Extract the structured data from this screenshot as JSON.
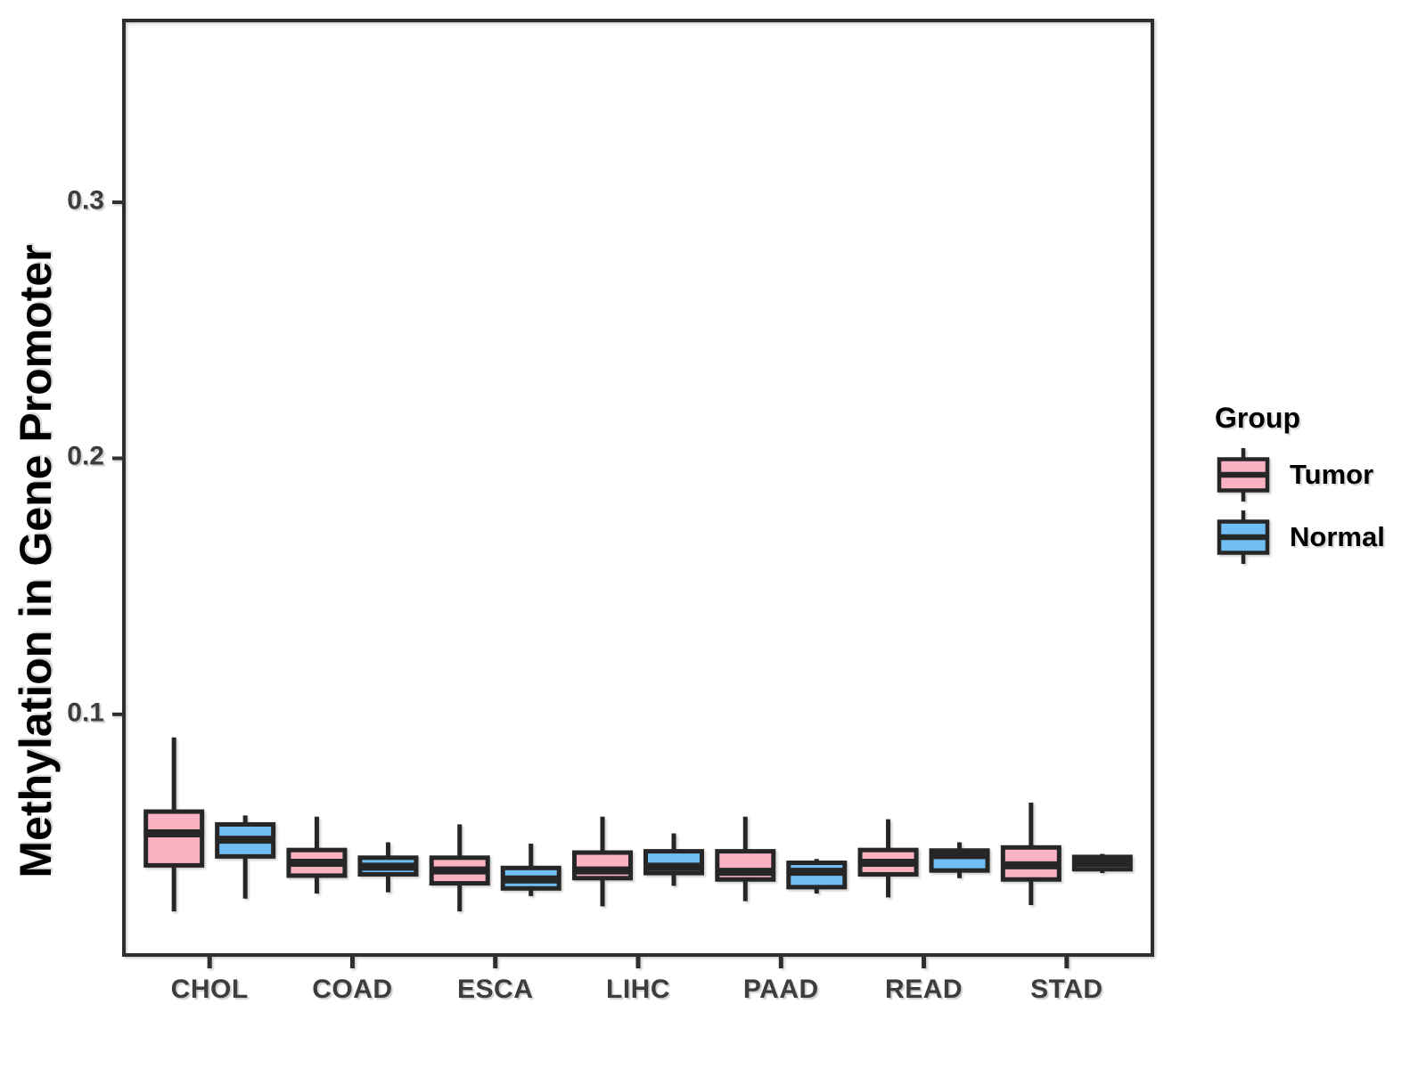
{
  "figure": {
    "background": "#ffffff",
    "legend": {
      "title": "Group",
      "items": [
        {
          "label": "Tumor",
          "color_key": "tumor"
        },
        {
          "label": "Normal",
          "color_key": "normal"
        }
      ]
    }
  },
  "colors": {
    "tumor_fill": "#FAB2C2",
    "normal_fill": "#71BEF5",
    "box_line": "#262626",
    "panel_line": "#2e2e2e",
    "tick_text": "#3d3d3d",
    "title_text": "#000000"
  },
  "chart_data": {
    "type": "boxplot",
    "title": "",
    "xlabel": "",
    "ylabel": "Methylation in Gene Promoter",
    "categories": [
      "CHOL",
      "COAD",
      "ESCA",
      "LIHC",
      "PAAD",
      "READ",
      "STAD"
    ],
    "y_ticks": [
      "0.1",
      "0.2",
      "0.3"
    ],
    "y_tick_values": [
      0.1,
      0.2,
      0.3
    ],
    "ylim": [
      0.006,
      0.371
    ],
    "grid": false,
    "legend_position": "right",
    "series": [
      {
        "name": "Tumor",
        "color_key": "tumor",
        "boxes": [
          {
            "cat": "CHOL",
            "whislo": 0.023,
            "q1": 0.041,
            "med": 0.0535,
            "q3": 0.062,
            "whishi": 0.091
          },
          {
            "cat": "COAD",
            "whislo": 0.03,
            "q1": 0.037,
            "med": 0.042,
            "q3": 0.047,
            "whishi": 0.06
          },
          {
            "cat": "ESCA",
            "whislo": 0.023,
            "q1": 0.034,
            "med": 0.039,
            "q3": 0.044,
            "whishi": 0.057
          },
          {
            "cat": "LIHC",
            "whislo": 0.025,
            "q1": 0.036,
            "med": 0.039,
            "q3": 0.046,
            "whishi": 0.06
          },
          {
            "cat": "PAAD",
            "whislo": 0.027,
            "q1": 0.0355,
            "med": 0.0385,
            "q3": 0.0465,
            "whishi": 0.06
          },
          {
            "cat": "READ",
            "whislo": 0.0285,
            "q1": 0.0375,
            "med": 0.042,
            "q3": 0.047,
            "whishi": 0.059
          },
          {
            "cat": "STAD",
            "whislo": 0.0255,
            "q1": 0.0355,
            "med": 0.041,
            "q3": 0.048,
            "whishi": 0.0655
          }
        ]
      },
      {
        "name": "Normal",
        "color_key": "normal",
        "boxes": [
          {
            "cat": "CHOL",
            "whislo": 0.028,
            "q1": 0.0445,
            "med": 0.051,
            "q3": 0.057,
            "whishi": 0.0605
          },
          {
            "cat": "COAD",
            "whislo": 0.0305,
            "q1": 0.0375,
            "med": 0.0405,
            "q3": 0.044,
            "whishi": 0.05
          },
          {
            "cat": "ESCA",
            "whislo": 0.029,
            "q1": 0.032,
            "med": 0.0355,
            "q3": 0.04,
            "whishi": 0.0495
          },
          {
            "cat": "LIHC",
            "whislo": 0.033,
            "q1": 0.038,
            "med": 0.0405,
            "q3": 0.0465,
            "whishi": 0.0535
          },
          {
            "cat": "PAAD",
            "whislo": 0.03,
            "q1": 0.0325,
            "med": 0.0385,
            "q3": 0.042,
            "whishi": 0.0435
          },
          {
            "cat": "READ",
            "whislo": 0.036,
            "q1": 0.039,
            "med": 0.045,
            "q3": 0.0468,
            "whishi": 0.05
          },
          {
            "cat": "STAD",
            "whislo": 0.038,
            "q1": 0.0395,
            "med": 0.042,
            "q3": 0.0443,
            "whishi": 0.0455
          }
        ]
      }
    ]
  }
}
